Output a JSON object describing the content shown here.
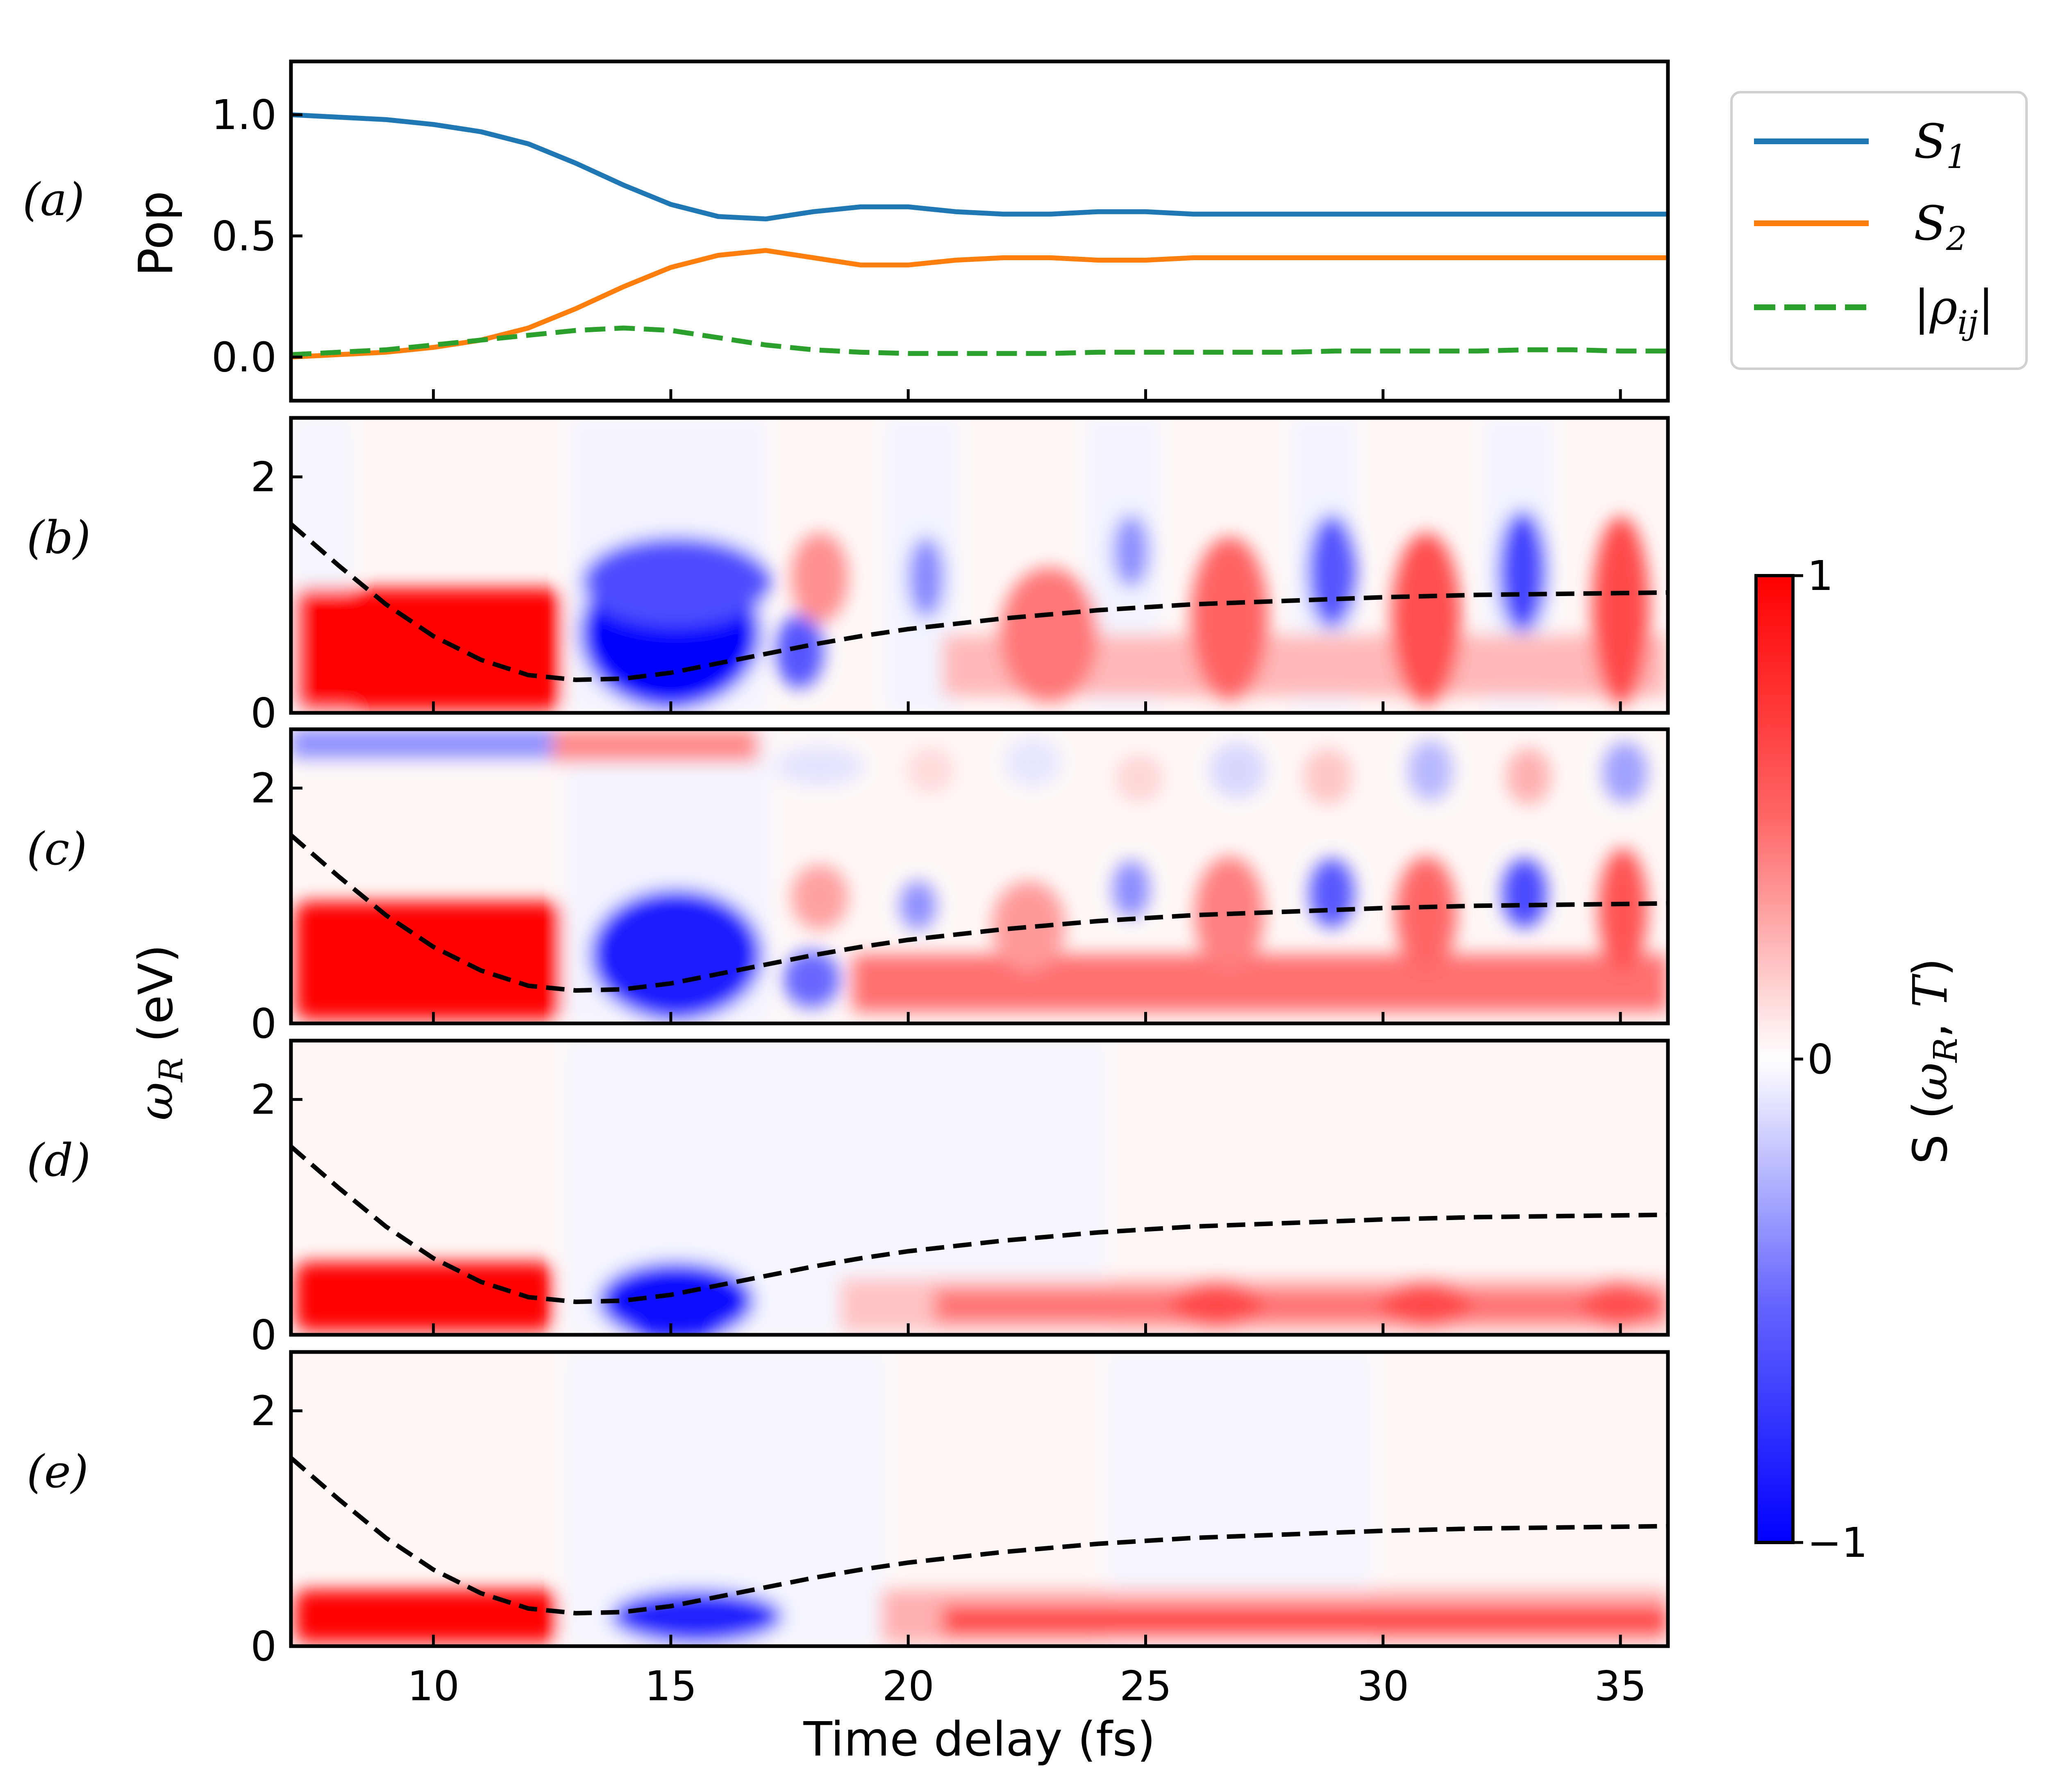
{
  "chart_data": [
    {
      "type": "line",
      "panel": "(a)",
      "ylabel": "Pop",
      "xlim": [
        7,
        36
      ],
      "ylim": [
        -0.18,
        1.22
      ],
      "yticks": [
        "0.0",
        "0.5",
        "1.0"
      ],
      "ytick_values": [
        0.0,
        0.5,
        1.0
      ],
      "x": [
        7,
        8,
        9,
        10,
        11,
        12,
        13,
        14,
        15,
        16,
        17,
        18,
        19,
        20,
        21,
        22,
        23,
        24,
        25,
        26,
        27,
        28,
        29,
        30,
        31,
        32,
        33,
        34,
        35,
        36
      ],
      "series": [
        {
          "name": "S_1",
          "color": "#1f77b4",
          "dash": "solid",
          "values": [
            1.0,
            0.99,
            0.98,
            0.96,
            0.93,
            0.88,
            0.8,
            0.71,
            0.63,
            0.58,
            0.57,
            0.6,
            0.62,
            0.62,
            0.6,
            0.59,
            0.59,
            0.6,
            0.6,
            0.59,
            0.59,
            0.59,
            0.59,
            0.59,
            0.59,
            0.59,
            0.59,
            0.59,
            0.59,
            0.59
          ]
        },
        {
          "name": "S_2",
          "color": "#ff7f0e",
          "dash": "solid",
          "values": [
            0.0,
            0.01,
            0.02,
            0.04,
            0.07,
            0.12,
            0.2,
            0.29,
            0.37,
            0.42,
            0.44,
            0.41,
            0.38,
            0.38,
            0.4,
            0.41,
            0.41,
            0.4,
            0.4,
            0.41,
            0.41,
            0.41,
            0.41,
            0.41,
            0.41,
            0.41,
            0.41,
            0.41,
            0.41,
            0.41
          ]
        },
        {
          "name": "|ρ_ij|",
          "color": "#2ca02c",
          "dash": "dashed",
          "values": [
            0.01,
            0.02,
            0.03,
            0.05,
            0.07,
            0.09,
            0.11,
            0.12,
            0.11,
            0.08,
            0.05,
            0.03,
            0.02,
            0.015,
            0.015,
            0.015,
            0.015,
            0.02,
            0.02,
            0.02,
            0.02,
            0.02,
            0.025,
            0.025,
            0.025,
            0.025,
            0.03,
            0.03,
            0.025,
            0.025
          ]
        }
      ]
    },
    {
      "type": "heatmap",
      "panels": [
        "(b)",
        "(c)",
        "(d)",
        "(e)"
      ],
      "xlabel": "Time delay (fs)",
      "ylabel": "ω_R (eV)",
      "xlim": [
        7,
        36
      ],
      "ylim": [
        0,
        2.5
      ],
      "xticks": [
        "10",
        "15",
        "20",
        "25",
        "30",
        "35"
      ],
      "xtick_values": [
        10,
        15,
        20,
        25,
        30,
        35
      ],
      "yticks": [
        "0",
        "2"
      ],
      "ytick_values": [
        0,
        2
      ],
      "colorbar": {
        "label": "S (ω_R, T)",
        "min": -1,
        "max": 1,
        "ticks": [
          "1",
          "0",
          "−1"
        ],
        "tick_values": [
          1,
          0,
          -1
        ]
      },
      "dashed_curve": {
        "x": [
          7,
          8,
          9,
          10,
          11,
          12,
          13,
          14,
          15,
          16,
          17,
          18,
          19,
          20,
          22,
          24,
          26,
          28,
          30,
          32,
          34,
          36
        ],
        "y": [
          1.6,
          1.25,
          0.92,
          0.65,
          0.45,
          0.32,
          0.28,
          0.29,
          0.34,
          0.42,
          0.5,
          0.58,
          0.65,
          0.71,
          0.8,
          0.87,
          0.92,
          0.95,
          0.98,
          1.0,
          1.01,
          1.02
        ]
      }
    }
  ],
  "panel_labels": {
    "a": "(a)",
    "b": "(b)",
    "c": "(c)",
    "d": "(d)",
    "e": "(e)"
  },
  "axes": {
    "top_ylabel": "Pop",
    "heat_ylabel_base": "ω",
    "heat_ylabel_sub": "R",
    "heat_ylabel_unit": " (eV)",
    "xlabel": "Time delay (fs)"
  },
  "legend": {
    "s1_base": "S",
    "s1_sub": "1",
    "s2_base": "S",
    "s2_sub": "2",
    "rho_open": "|ρ",
    "rho_sub": "ij",
    "rho_close": "|"
  },
  "colorbar_label": {
    "pre": "S (",
    "omega": "ω",
    "sub": "R",
    "post": ", ",
    "T": "T",
    "close": ")"
  }
}
